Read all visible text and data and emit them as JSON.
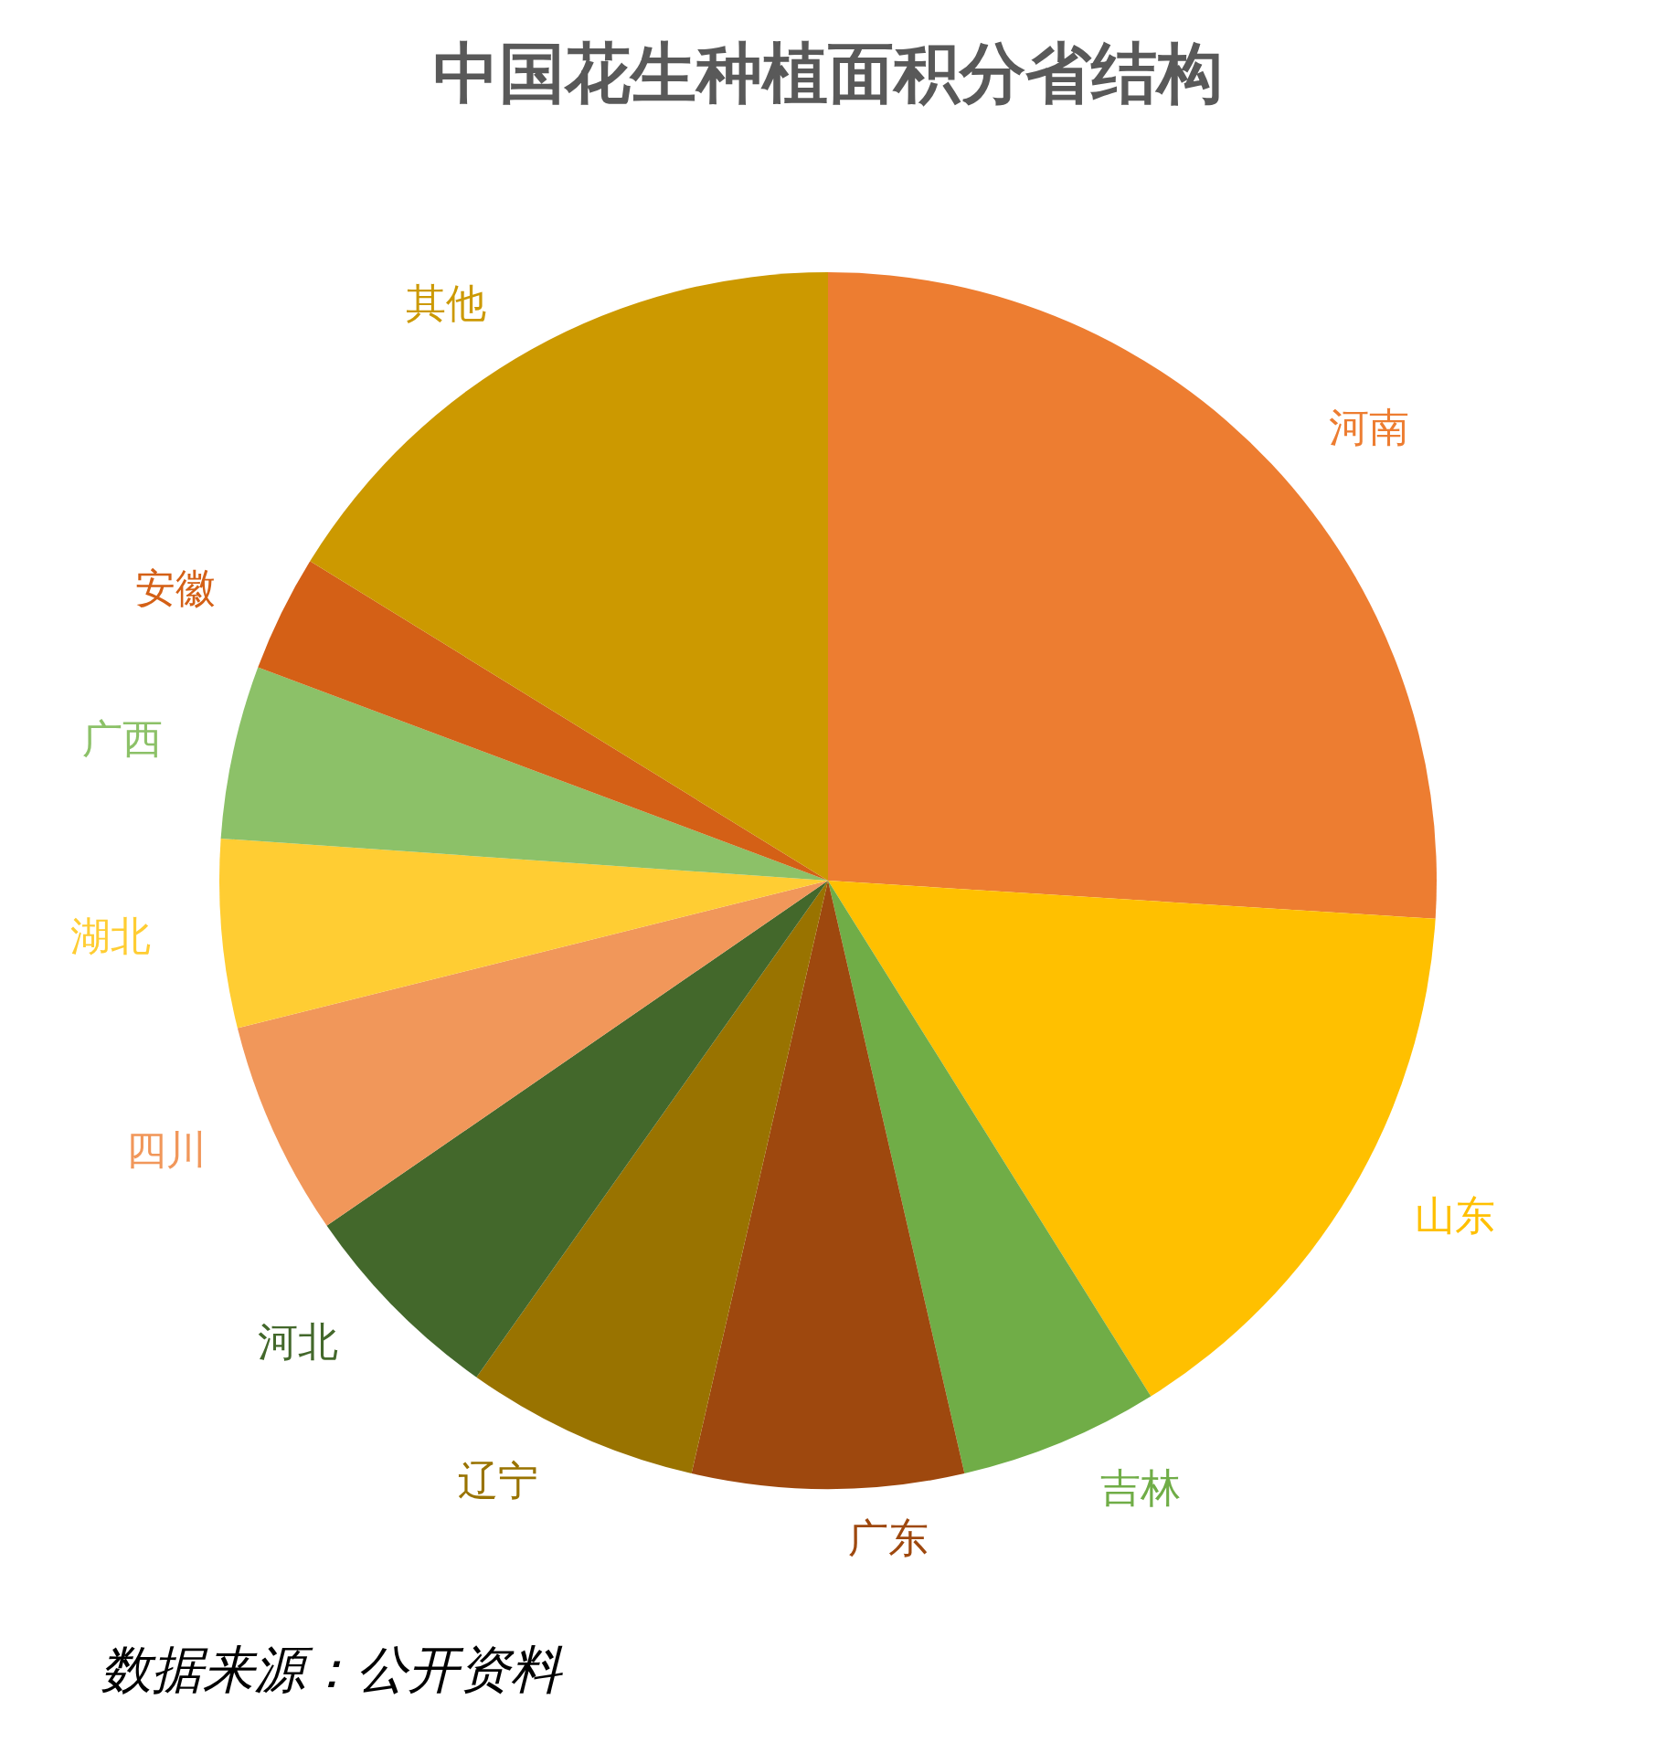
{
  "chart_data": {
    "type": "pie",
    "title": "中国花生种植面积分省结构",
    "categories": [
      "河南",
      "山东",
      "吉林",
      "广东",
      "辽宁",
      "河北",
      "四川",
      "湖北",
      "广西",
      "安徽",
      "其他"
    ],
    "values": [
      26.0,
      15.1,
      5.3,
      7.2,
      6.2,
      5.6,
      5.7,
      5.0,
      4.6,
      3.1,
      16.2
    ],
    "colors": [
      "#ed7d31",
      "#ffc000",
      "#70ad47",
      "#9e480e",
      "#997300",
      "#43682b",
      "#f1975a",
      "#ffcd33",
      "#8cc168",
      "#d46016",
      "#cc9900"
    ],
    "annotations": [
      "数据来源：公开资料"
    ]
  }
}
